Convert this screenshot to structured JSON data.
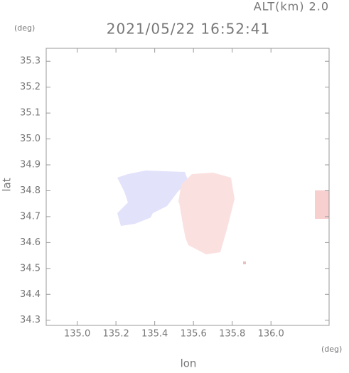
{
  "chart_data": {
    "type": "map",
    "title": "2021/05/22 16:52:41",
    "subtitle": "ALT(km) 2.0",
    "x_label": "lon",
    "x_unit": "(deg)",
    "y_label": "lat",
    "y_unit": "(deg)",
    "xlim": [
      134.84,
      136.3
    ],
    "ylim": [
      34.28,
      35.35
    ],
    "xticks": [
      {
        "value": 135,
        "label": "135.0"
      },
      135.2,
      135.4,
      135.6,
      135.8,
      {
        "value": 136,
        "label": "136.0"
      }
    ],
    "yticks": [
      {
        "value": 34.3,
        "label": "34.3"
      },
      34.4,
      34.5,
      34.6,
      34.7,
      34.8,
      34.9,
      {
        "value": 35,
        "label": "35.0"
      },
      35.1,
      35.2,
      35.3
    ]
  }
}
